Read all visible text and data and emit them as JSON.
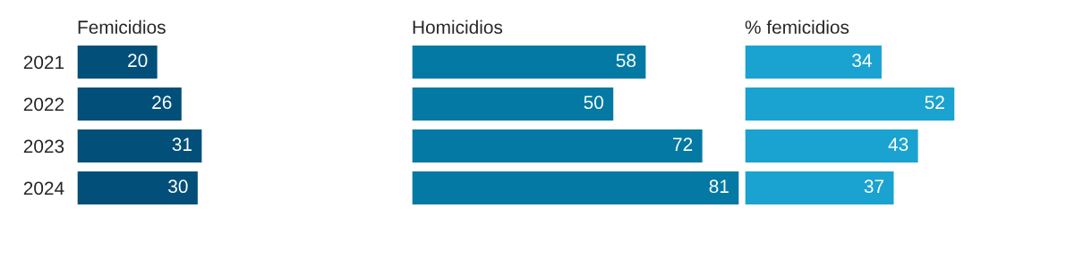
{
  "chart_data": [
    {
      "type": "bar",
      "orientation": "horizontal",
      "title": "Femicidios",
      "categories": [
        "2021",
        "2022",
        "2023",
        "2024"
      ],
      "values": [
        20,
        26,
        31,
        30
      ],
      "color": "#02507a",
      "data_labels": true,
      "tick_labels": "y"
    },
    {
      "type": "bar",
      "orientation": "horizontal",
      "title": "Homicidios",
      "categories": [
        "2021",
        "2022",
        "2023",
        "2024"
      ],
      "values": [
        58,
        50,
        72,
        81
      ],
      "color": "#0479a3",
      "data_labels": true,
      "tick_labels": false
    },
    {
      "type": "bar",
      "orientation": "horizontal",
      "title": "% femicidios",
      "categories": [
        "2021",
        "2022",
        "2023",
        "2024"
      ],
      "values": [
        34,
        52,
        43,
        37
      ],
      "color": "#1aa3d0",
      "data_labels": true,
      "tick_labels": false
    }
  ]
}
